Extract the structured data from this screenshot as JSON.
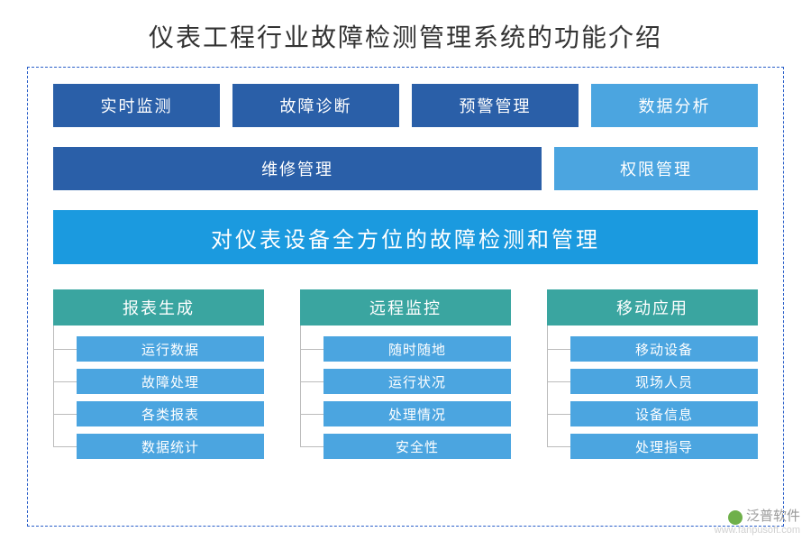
{
  "title": "仪表工程行业故障检测管理系统的功能介绍",
  "colors": {
    "darkBlue": "#2a5fa8",
    "lightBlue": "#4ba5e0",
    "bannerBlue": "#1b9adf",
    "teal": "#3aa5a0",
    "dash": "#2a5fc9",
    "line": "#bbbbbb"
  },
  "row1": [
    {
      "label": "实时监测",
      "style": "dark"
    },
    {
      "label": "故障诊断",
      "style": "dark"
    },
    {
      "label": "预警管理",
      "style": "dark"
    },
    {
      "label": "数据分析",
      "style": "light"
    }
  ],
  "row2": [
    {
      "label": "维修管理",
      "style": "dark"
    },
    {
      "label": "权限管理",
      "style": "light"
    }
  ],
  "banner": "对仪表设备全方位的故障检测和管理",
  "trees": [
    {
      "head": "报表生成",
      "subs": [
        "运行数据",
        "故障处理",
        "各类报表",
        "数据统计"
      ]
    },
    {
      "head": "远程监控",
      "subs": [
        "随时随地",
        "运行状况",
        "处理情况",
        "安全性"
      ]
    },
    {
      "head": "移动应用",
      "subs": [
        "移动设备",
        "现场人员",
        "设备信息",
        "处理指导"
      ]
    }
  ],
  "watermark": {
    "cn": "泛普软件",
    "url": "www.fanpusoft.com"
  }
}
